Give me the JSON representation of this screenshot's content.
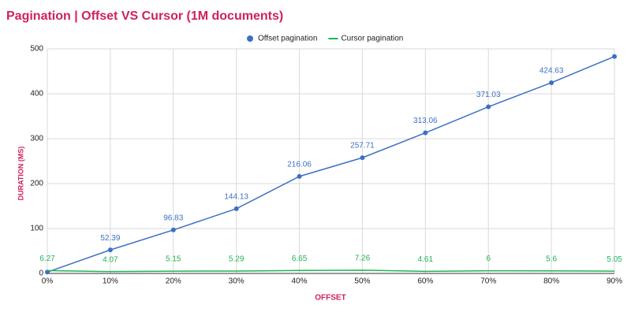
{
  "chart_data": {
    "type": "line",
    "title": "Pagination | Offset VS Cursor (1M documents)",
    "x_label": "OFFSET",
    "y_label": "DURATION (MS)",
    "categories": [
      "0%",
      "10%",
      "20%",
      "30%",
      "40%",
      "50%",
      "60%",
      "70%",
      "80%",
      "90%"
    ],
    "series": [
      {
        "name": "Offset pagination",
        "color": "#3d6fc6",
        "markers": true,
        "values": [
          3,
          52.39,
          96.83,
          144.13,
          216.06,
          257.71,
          313.06,
          371.03,
          424.63,
          483
        ],
        "value_labels": [
          null,
          "52.39",
          "96.83",
          "144.13",
          "216.06",
          "257.71",
          "313.06",
          "371.03",
          "424.63",
          null
        ]
      },
      {
        "name": "Cursor pagination",
        "color": "#1fb356",
        "markers": false,
        "values": [
          6.27,
          4.07,
          5.15,
          5.29,
          6.65,
          7.26,
          4.61,
          6,
          5.6,
          5.05
        ]
      }
    ],
    "ylim": [
      0,
      500
    ],
    "yticks": [
      0,
      100,
      200,
      300,
      400,
      500
    ],
    "grid": true,
    "legend": "top"
  }
}
